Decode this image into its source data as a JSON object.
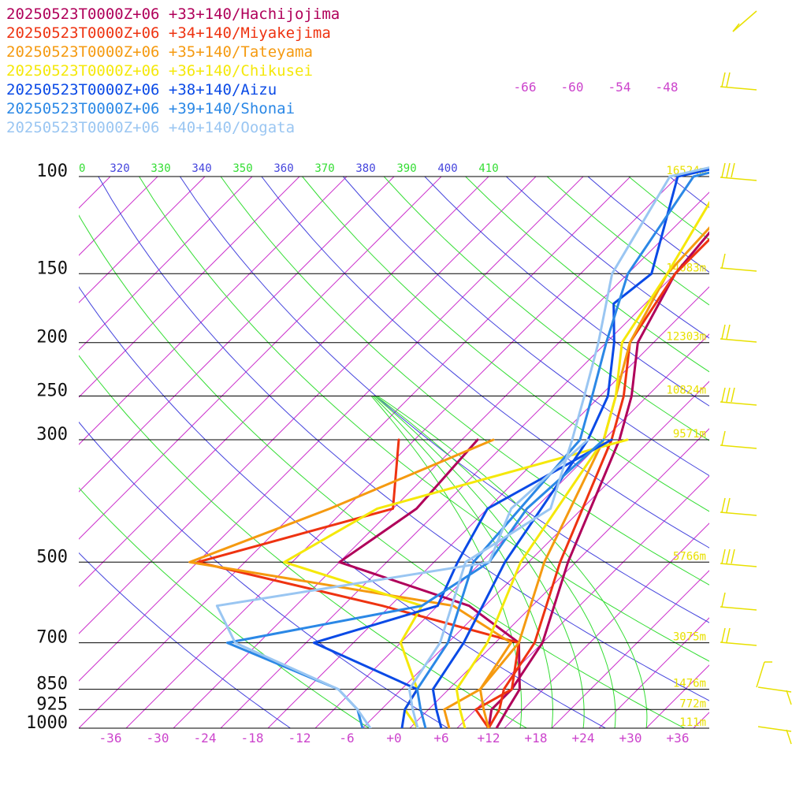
{
  "chart_data": {
    "type": "line",
    "pressure_levels": [
      100,
      150,
      200,
      250,
      300,
      500,
      700,
      850,
      925,
      1000
    ],
    "height_labels": [
      {
        "p": 100,
        "text": "16524m"
      },
      {
        "p": 150,
        "text": "14083m"
      },
      {
        "p": 200,
        "text": "12303m"
      },
      {
        "p": 250,
        "text": "10824m"
      },
      {
        "p": 300,
        "text": "9571m"
      },
      {
        "p": 500,
        "text": "5766m"
      },
      {
        "p": 700,
        "text": "3075m"
      },
      {
        "p": 850,
        "text": "1476m"
      },
      {
        "p": 925,
        "text": "772m"
      },
      {
        "p": 1000,
        "text": "111m"
      }
    ],
    "x_tick_labels": [
      "-36",
      "-30",
      "-24",
      "-18",
      "-12",
      "-6",
      "+0",
      "+6",
      "+12",
      "+18",
      "+24",
      "+30",
      "+36"
    ],
    "x_ticks": [
      -36,
      -30,
      -24,
      -18,
      -12,
      -6,
      0,
      6,
      12,
      18,
      24,
      30,
      36
    ],
    "upper_temp_labels": [
      "-66",
      "-60",
      "-54",
      "-48"
    ],
    "theta_labels": [
      {
        "text": "0",
        "color": "#33dd33"
      },
      {
        "text": "320",
        "color": "#4444dd"
      },
      {
        "text": "330",
        "color": "#33dd33"
      },
      {
        "text": "340",
        "color": "#4444dd"
      },
      {
        "text": "350",
        "color": "#33dd33"
      },
      {
        "text": "360",
        "color": "#4444dd"
      },
      {
        "text": "370",
        "color": "#33dd33"
      },
      {
        "text": "380",
        "color": "#4444dd"
      },
      {
        "text": "390",
        "color": "#33dd33"
      },
      {
        "text": "400",
        "color": "#4444dd"
      },
      {
        "text": "410",
        "color": "#33dd33"
      }
    ],
    "series": [
      {
        "name": "20250523T0000Z+06 +33+140/Hachijojima",
        "color": "#b0005a",
        "temperature": [
          [
            40,
            17
          ],
          [
            80,
            -5
          ],
          [
            100,
            -24
          ],
          [
            150,
            -22
          ],
          [
            200,
            -18
          ],
          [
            250,
            -12
          ],
          [
            300,
            -8
          ],
          [
            500,
            1
          ],
          [
            700,
            8
          ],
          [
            850,
            10
          ],
          [
            925,
            10
          ],
          [
            1000,
            12
          ]
        ],
        "dewpoint": [
          [
            300,
            -26
          ],
          [
            400,
            -25
          ],
          [
            500,
            -28
          ],
          [
            600,
            -6
          ],
          [
            700,
            5
          ],
          [
            850,
            11
          ],
          [
            925,
            12
          ],
          [
            1000,
            13
          ]
        ]
      },
      {
        "name": "20250523T0000Z+06 +34+140/Miyakejima",
        "color": "#ee3311",
        "temperature": [
          [
            40,
            17
          ],
          [
            80,
            -7
          ],
          [
            100,
            -22
          ],
          [
            150,
            -22
          ],
          [
            200,
            -19
          ],
          [
            250,
            -13
          ],
          [
            300,
            -9
          ],
          [
            500,
            0
          ],
          [
            700,
            7
          ],
          [
            850,
            9
          ],
          [
            925,
            11
          ],
          [
            1000,
            12
          ]
        ],
        "dewpoint": [
          [
            300,
            -36
          ],
          [
            400,
            -28
          ],
          [
            500,
            -46
          ],
          [
            600,
            -17
          ],
          [
            700,
            5
          ],
          [
            850,
            10
          ],
          [
            925,
            8
          ],
          [
            1000,
            12
          ]
        ]
      },
      {
        "name": "20250523T0000Z+06 +35+140/Tateyama",
        "color": "#f59a10",
        "temperature": [
          [
            40,
            17
          ],
          [
            80,
            -8
          ],
          [
            100,
            -24
          ],
          [
            150,
            -23
          ],
          [
            200,
            -19
          ],
          [
            250,
            -14
          ],
          [
            300,
            -10
          ],
          [
            500,
            -2
          ],
          [
            700,
            5
          ],
          [
            850,
            6
          ],
          [
            925,
            9
          ],
          [
            1000,
            12
          ]
        ],
        "dewpoint": [
          [
            300,
            -24
          ],
          [
            400,
            -36
          ],
          [
            500,
            -47
          ],
          [
            600,
            -8
          ],
          [
            700,
            4
          ],
          [
            850,
            6
          ],
          [
            925,
            4
          ],
          [
            1000,
            7
          ]
        ]
      },
      {
        "name": "20250523T0000Z+06 +36+140/Chikusei",
        "color": "#f5e80a",
        "temperature": [
          [
            40,
            17
          ],
          [
            80,
            -9
          ],
          [
            100,
            -28
          ],
          [
            150,
            -23
          ],
          [
            200,
            -20
          ],
          [
            250,
            -14
          ],
          [
            300,
            -10
          ],
          [
            500,
            -5
          ],
          [
            700,
            1
          ],
          [
            850,
            3
          ],
          [
            925,
            6
          ],
          [
            1000,
            9
          ]
        ],
        "dewpoint": [
          [
            300,
            -7
          ],
          [
            400,
            -30
          ],
          [
            500,
            -35
          ],
          [
            600,
            -12
          ],
          [
            700,
            -10
          ],
          [
            850,
            -2
          ],
          [
            925,
            -1
          ],
          [
            1000,
            3
          ]
        ]
      },
      {
        "name": "20250523T0000Z+06 +38+140/Aizu",
        "color": "#0a4ae6",
        "temperature": [
          [
            40,
            17
          ],
          [
            80,
            -10
          ],
          [
            100,
            -34
          ],
          [
            150,
            -25
          ],
          [
            170,
            -26
          ],
          [
            200,
            -21
          ],
          [
            250,
            -15
          ],
          [
            300,
            -12
          ],
          [
            500,
            -7
          ],
          [
            700,
            -2
          ],
          [
            850,
            0
          ],
          [
            925,
            3
          ],
          [
            1000,
            6
          ]
        ],
        "dewpoint": [
          [
            300,
            -9
          ],
          [
            400,
            -16
          ],
          [
            500,
            -13
          ],
          [
            600,
            -10
          ],
          [
            700,
            -21
          ],
          [
            850,
            -2
          ],
          [
            925,
            -1
          ],
          [
            1000,
            1
          ]
        ]
      },
      {
        "name": "20250523T0000Z+06 +39+140/Shonai",
        "color": "#2b88e6",
        "temperature": [
          [
            40,
            17
          ],
          [
            80,
            -11
          ],
          [
            100,
            -32
          ],
          [
            150,
            -28
          ],
          [
            200,
            -22
          ],
          [
            250,
            -17
          ],
          [
            300,
            -13
          ],
          [
            500,
            -11
          ],
          [
            700,
            -4
          ],
          [
            850,
            -2
          ],
          [
            925,
            1
          ],
          [
            1000,
            4
          ]
        ],
        "dewpoint": [
          [
            300,
            -10
          ],
          [
            400,
            -11
          ],
          [
            500,
            -9
          ],
          [
            600,
            -12
          ],
          [
            700,
            -32
          ],
          [
            850,
            -12
          ],
          [
            925,
            -7
          ],
          [
            1000,
            -4
          ]
        ]
      },
      {
        "name": "20250523T0000Z+06 +40+140/Oogata",
        "color": "#9ac6f2",
        "temperature": [
          [
            40,
            17
          ],
          [
            80,
            -12
          ],
          [
            100,
            -35
          ],
          [
            150,
            -30
          ],
          [
            200,
            -23
          ],
          [
            250,
            -18
          ],
          [
            300,
            -14
          ],
          [
            400,
            -8
          ],
          [
            500,
            -12
          ],
          [
            700,
            -5
          ],
          [
            850,
            -3
          ],
          [
            925,
            0
          ],
          [
            1000,
            3
          ]
        ],
        "dewpoint": [
          [
            300,
            -12
          ],
          [
            400,
            -13
          ],
          [
            500,
            -9
          ],
          [
            600,
            -38
          ],
          [
            700,
            -31
          ],
          [
            850,
            -12
          ],
          [
            925,
            -7
          ],
          [
            1000,
            -3
          ]
        ]
      }
    ]
  }
}
